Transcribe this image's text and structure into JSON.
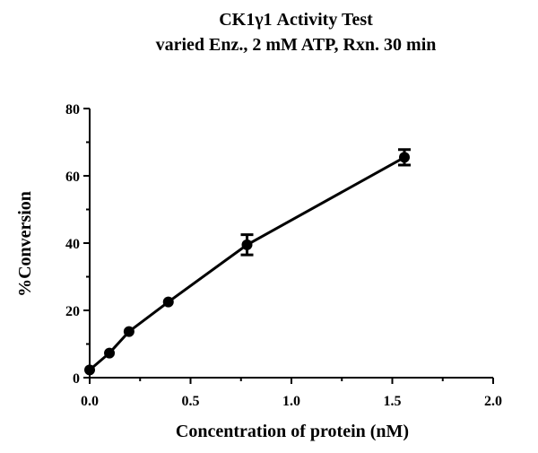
{
  "chart_data": {
    "type": "line",
    "title": "CK1γ1 Activity Test",
    "subtitle": "varied Enz., 2 mM ATP, Rxn. 30 min",
    "xlabel": "Concentration of protein (nM)",
    "ylabel": "%Conversion",
    "xlim": [
      0,
      2.0
    ],
    "ylim": [
      0,
      80
    ],
    "xticks": [
      "0.0",
      "0.5",
      "1.0",
      "1.5",
      "2.0"
    ],
    "yticks": [
      "0",
      "20",
      "40",
      "60",
      "80"
    ],
    "grid": false,
    "series": [
      {
        "name": "CK1γ1",
        "x": [
          0.0,
          0.098,
          0.195,
          0.39,
          0.78,
          1.56
        ],
        "y": [
          2.3,
          7.3,
          13.7,
          22.5,
          39.5,
          65.5
        ],
        "error": [
          0.3,
          0.4,
          0.5,
          0.6,
          3.0,
          2.3
        ]
      }
    ],
    "colors": {
      "line": "#000000",
      "marker": "#000000"
    }
  }
}
